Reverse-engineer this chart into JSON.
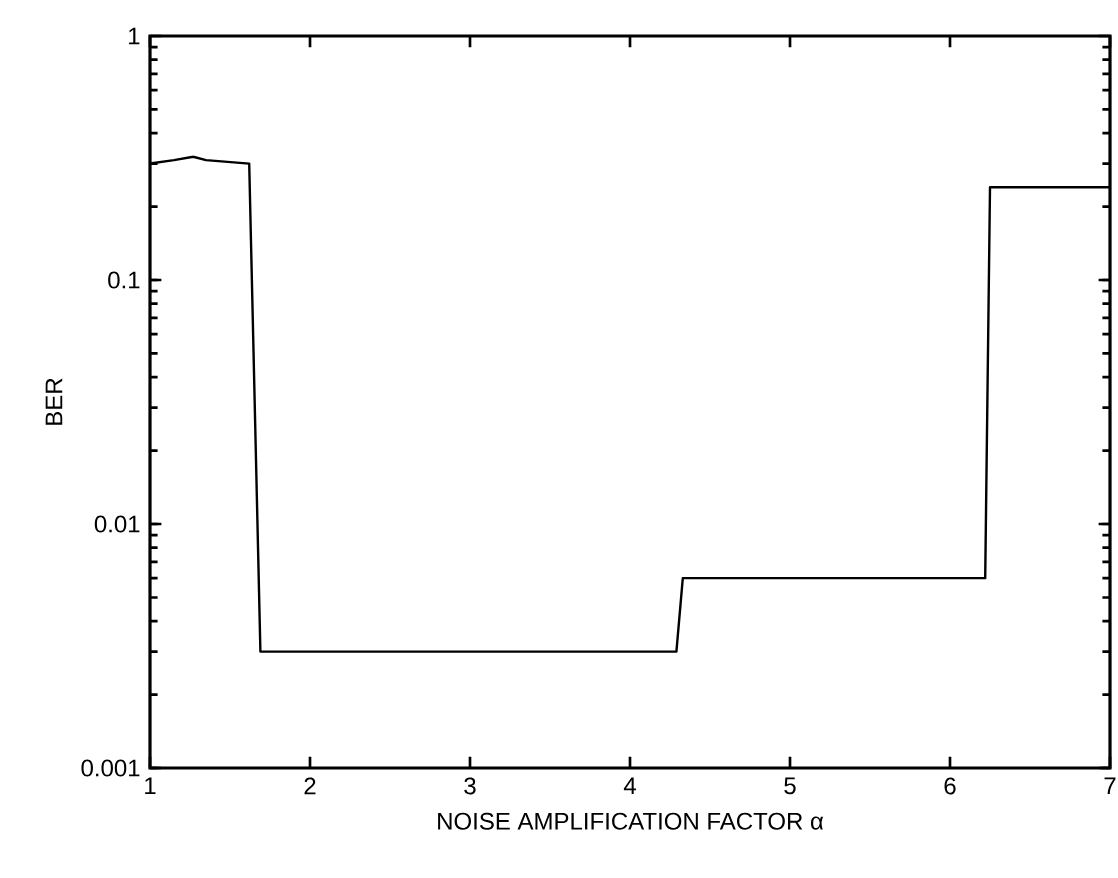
{
  "chart_data": {
    "type": "line",
    "xlabel": "NOISE AMPLIFICATION FACTOR  α",
    "ylabel": "BER",
    "log": "y",
    "x": [
      1,
      1.15,
      1.27,
      1.35,
      1.62,
      1.69,
      4.29,
      4.33,
      6.22,
      6.25,
      7
    ],
    "series": [
      {
        "color": "#000000",
        "values": [
          0.3,
          0.31,
          0.32,
          0.31,
          0.3,
          0.003,
          0.003,
          0.006,
          0.006,
          0.24,
          0.24
        ]
      }
    ],
    "xlim": [
      1,
      7
    ],
    "ylim": [
      0.001,
      1
    ],
    "xticks": [
      1,
      2,
      3,
      4,
      5,
      6,
      7
    ],
    "yticks": [
      0.001,
      0.01,
      0.1,
      1
    ],
    "grid": false,
    "marker": "none",
    "line_style": "solid"
  }
}
